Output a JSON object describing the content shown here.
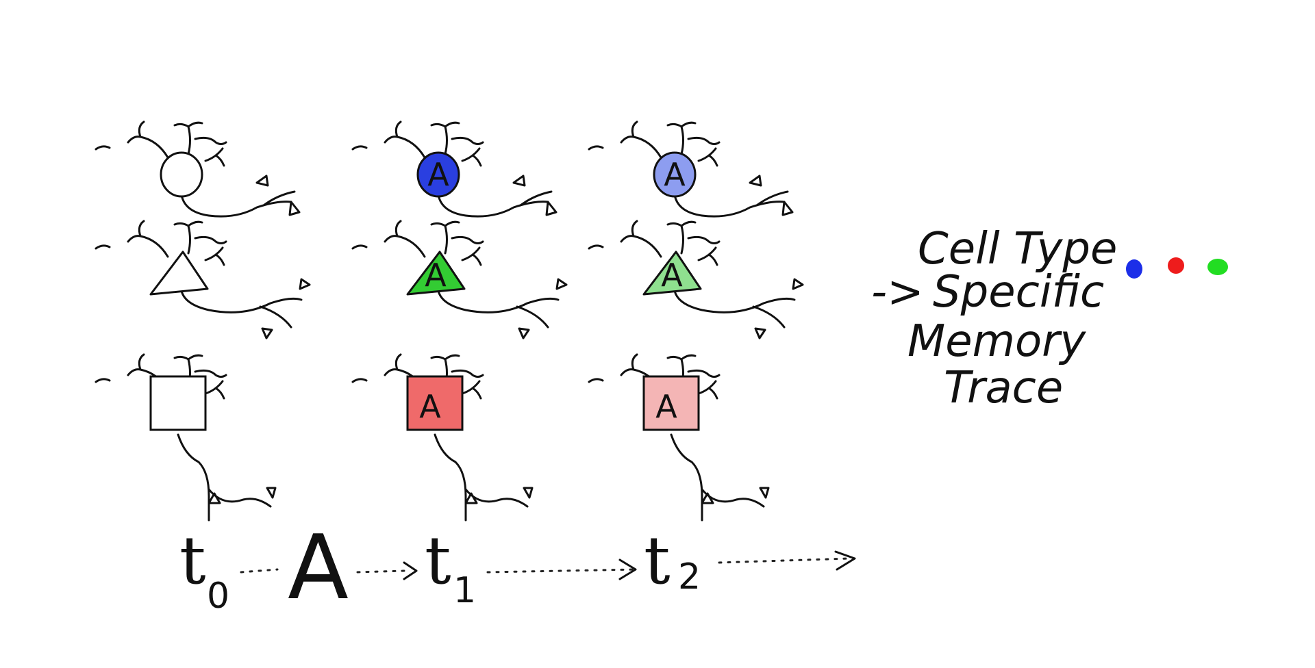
{
  "neuron_label": "A",
  "timeline": {
    "t0": "t",
    "t0_sub": "0",
    "stimulus": "A",
    "t1": "t",
    "t1_sub": "1",
    "t2": "t",
    "t2_sub": "2"
  },
  "note_lines": [
    "Cell Type",
    "Specific",
    "Memory",
    "Trace"
  ],
  "note_arrow": "->",
  "cell_types": [
    {
      "shape": "circle",
      "name": "circle-cell"
    },
    {
      "shape": "triangle",
      "name": "triangle-cell"
    },
    {
      "shape": "square",
      "name": "square-cell"
    }
  ],
  "stages": [
    {
      "stage": "t0",
      "colors": [
        "#ffffff",
        "#ffffff",
        "#ffffff"
      ],
      "labeled": false
    },
    {
      "stage": "t1",
      "colors": [
        "#2a3fe0",
        "#33cc33",
        "#ef6a6a"
      ],
      "labeled": true
    },
    {
      "stage": "t2",
      "colors": [
        "#8d9df0",
        "#8fe08f",
        "#f4b5b5"
      ],
      "labeled": true
    }
  ],
  "legend_dots": [
    "#1c2ee8",
    "#ee1c1c",
    "#22dd22"
  ]
}
